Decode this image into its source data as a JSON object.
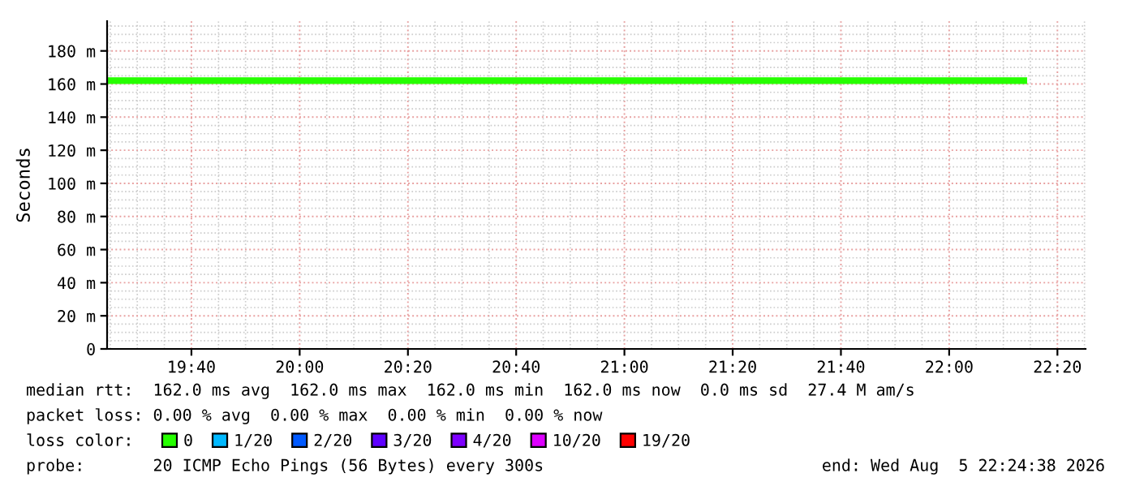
{
  "chart_data": {
    "type": "line",
    "ylabel": "Seconds",
    "x": [
      19.407,
      22.24
    ],
    "series": [
      {
        "name": "0",
        "color": "#26ff00",
        "values": [
          162,
          162
        ]
      },
      {
        "name": "1/20",
        "color": "#00b8ff",
        "values": [
          null,
          null
        ]
      },
      {
        "name": "2/20",
        "color": "#0059ff",
        "values": [
          null,
          null
        ]
      },
      {
        "name": "3/20",
        "color": "#5e00ff",
        "values": [
          null,
          null
        ]
      },
      {
        "name": "4/20",
        "color": "#7e00ff",
        "values": [
          null,
          null
        ]
      },
      {
        "name": "10/20",
        "color": "#dd00ff",
        "values": [
          null,
          null
        ]
      },
      {
        "name": "19/20",
        "color": "#ff0000",
        "values": [
          null,
          null
        ]
      }
    ],
    "legend_title": "loss color:",
    "legend": "bottom",
    "grid": true,
    "marker": "none",
    "line_style": "solid",
    "xlim": [
      19.407,
      22.42
    ],
    "xticks": [
      {
        "value": 19.666667,
        "label": "19:40"
      },
      {
        "value": 20.0,
        "label": "20:00"
      },
      {
        "value": 20.333333,
        "label": "20:20"
      },
      {
        "value": 20.666667,
        "label": "20:40"
      },
      {
        "value": 21.0,
        "label": "21:00"
      },
      {
        "value": 21.333333,
        "label": "21:20"
      },
      {
        "value": 21.666667,
        "label": "21:40"
      },
      {
        "value": 22.0,
        "label": "22:00"
      },
      {
        "value": 22.333333,
        "label": "22:20"
      }
    ],
    "ylim": [
      0,
      198
    ],
    "yticks": [
      {
        "value": 0,
        "label": "0"
      },
      {
        "value": 20,
        "label": "20 m"
      },
      {
        "value": 40,
        "label": "40 m"
      },
      {
        "value": 60,
        "label": "60 m"
      },
      {
        "value": 80,
        "label": "80 m"
      },
      {
        "value": 100,
        "label": "100 m"
      },
      {
        "value": 120,
        "label": "120 m"
      },
      {
        "value": 140,
        "label": "140 m"
      },
      {
        "value": 160,
        "label": "160 m"
      },
      {
        "value": 180,
        "label": "180 m"
      }
    ],
    "annotations": [
      "median rtt:  162.0 ms avg  162.0 ms max  162.0 ms min  162.0 ms now  0.0 ms sd  27.4 M am/s",
      "packet loss: 0.00 % avg  0.00 % max  0.00 % min  0.00 % now",
      "probe:       20 ICMP Echo Pings (56 Bytes) every 300s",
      "end: Wed Aug  5 22:24:38 2026"
    ]
  }
}
